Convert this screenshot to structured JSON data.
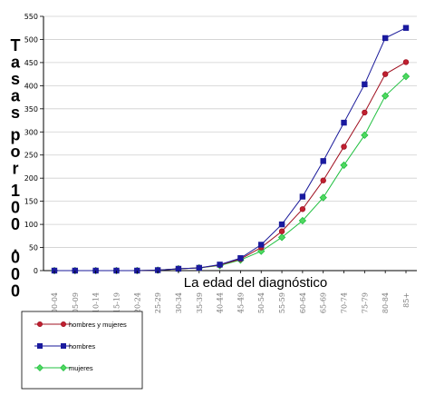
{
  "chart_data": {
    "type": "line",
    "title": "",
    "xlabel": "La edad del diagnóstico",
    "ylabel": "Tasas por 100 .000",
    "categories": [
      "00-04",
      "05-09",
      "10-14",
      "15-19",
      "20-24",
      "25-29",
      "30-34",
      "35-39",
      "40-44",
      "45-49",
      "50-54",
      "55-59",
      "60-64",
      "65-69",
      "70-74",
      "75-79",
      "80-84",
      "85+"
    ],
    "ylim": [
      0,
      550
    ],
    "yticks": [
      0,
      50,
      100,
      150,
      200,
      250,
      300,
      350,
      400,
      450,
      500,
      550
    ],
    "grid": true,
    "legend_placement": "bottom-left",
    "series": [
      {
        "name": "hombres y mujeres",
        "color": "#a01020",
        "fill": "#c02030",
        "marker": "circle",
        "values": [
          0,
          0,
          0,
          0,
          0,
          1,
          4,
          6,
          12,
          25,
          50,
          85,
          133,
          195,
          268,
          342,
          425,
          451
        ]
      },
      {
        "name": "hombres",
        "color": "#1a1a9a",
        "fill": "#1a1aa0",
        "marker": "square",
        "values": [
          0,
          0,
          0,
          0,
          0,
          1,
          4,
          6,
          13,
          27,
          56,
          100,
          160,
          237,
          320,
          403,
          503,
          525
        ]
      },
      {
        "name": "mujeres",
        "color": "#20c040",
        "fill": "#50d860",
        "marker": "diamond",
        "values": [
          0,
          0,
          0,
          0,
          0,
          1,
          4,
          6,
          11,
          23,
          42,
          72,
          108,
          158,
          228,
          293,
          378,
          420
        ]
      }
    ]
  }
}
